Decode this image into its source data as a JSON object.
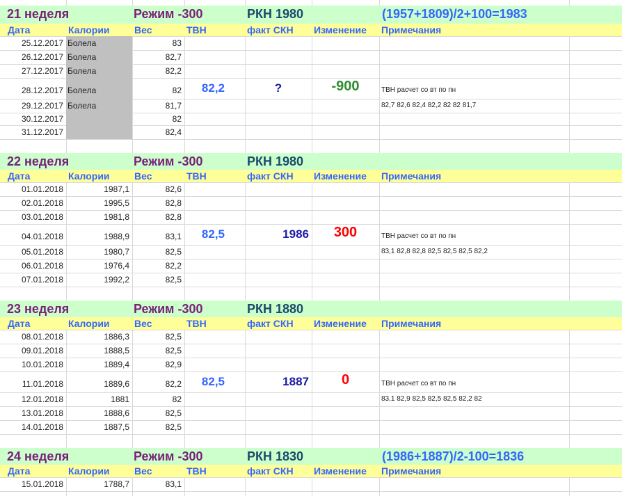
{
  "header_labels": [
    "Дата",
    "Калории",
    "Вес",
    "ТВН",
    "факт СКН",
    "Изменение",
    "Примечания"
  ],
  "weeks": [
    {
      "title": {
        "week": "21  неделя",
        "mode": "Режим -300",
        "rkn": "РКН  1980",
        "formula": "(1957+1809)/2+100=1983"
      },
      "rows": [
        {
          "date": "25.12.2017",
          "cal": "Болела",
          "weight": "83"
        },
        {
          "date": "26.12.2017",
          "cal": "Болела",
          "weight": "82,7"
        },
        {
          "date": "27.12.2017",
          "cal": "Болела",
          "weight": "82,2"
        },
        {
          "date": "28.12.2017",
          "cal": "Болела",
          "weight": "82",
          "tvn": "82,2",
          "fact": "?",
          "change": "-900",
          "note": "ТВН расчет со вт по пн"
        },
        {
          "date": "29.12.2017",
          "cal": "Болела",
          "weight": "81,7",
          "note": "82,7  82,6  82,4  82,2  82  82  81,7"
        },
        {
          "date": "30.12.2017",
          "cal": "",
          "weight": "82"
        },
        {
          "date": "31.12.2017",
          "cal": "",
          "weight": "82,4"
        }
      ]
    },
    {
      "title": {
        "week": "22  неделя",
        "mode": "Режим -300",
        "rkn": "РКН  1980",
        "formula": ""
      },
      "rows": [
        {
          "date": "01.01.2018",
          "cal": "1987,1",
          "weight": "82,6"
        },
        {
          "date": "02.01.2018",
          "cal": "1995,5",
          "weight": "82,8"
        },
        {
          "date": "03.01.2018",
          "cal": "1981,8",
          "weight": "82,8"
        },
        {
          "date": "04.01.2018",
          "cal": "1988,9",
          "weight": "83,1",
          "tvn": "82,5",
          "fact": "1986",
          "change": "300",
          "note": "ТВН расчет со вт по пн"
        },
        {
          "date": "05.01.2018",
          "cal": "1980,7",
          "weight": "82,5",
          "note": "83,1  82,8  82,8  82,5  82,5  82,5  82,2"
        },
        {
          "date": "06.01.2018",
          "cal": "1976,4",
          "weight": "82,2"
        },
        {
          "date": "07.01.2018",
          "cal": "1992,2",
          "weight": "82,5"
        }
      ]
    },
    {
      "title": {
        "week": "23  неделя",
        "mode": "Режим -300",
        "rkn": "РКН 1880",
        "formula": ""
      },
      "rows": [
        {
          "date": "08.01.2018",
          "cal": "1886,3",
          "weight": "82,5"
        },
        {
          "date": "09.01.2018",
          "cal": "1888,5",
          "weight": "82,5"
        },
        {
          "date": "10.01.2018",
          "cal": "1889,4",
          "weight": "82,9"
        },
        {
          "date": "11.01.2018",
          "cal": "1889,6",
          "weight": "82,2",
          "tvn": "82,5",
          "fact": "1887",
          "change": "0",
          "note": "ТВН расчет со вт по пн"
        },
        {
          "date": "12.01.2018",
          "cal": "1881",
          "weight": "82",
          "note": "83,1  82,9  82,5  82,5  82,5  82,2  82"
        },
        {
          "date": "13.01.2018",
          "cal": "1888,6",
          "weight": "82,5"
        },
        {
          "date": "14.01.2018",
          "cal": "1887,5",
          "weight": "82,5"
        }
      ]
    },
    {
      "title": {
        "week": "24  неделя",
        "mode": "Режим -300",
        "rkn": "РКН 1830",
        "formula": "(1986+1887)/2-100=1836"
      },
      "rows": [
        {
          "date": "15.01.2018",
          "cal": "1788,7",
          "weight": "83,1"
        }
      ]
    }
  ],
  "colors": {
    "title_bg": "#ccffcc",
    "header_bg": "#ffff99",
    "header_text": "#3366ff",
    "week_text": "#7a1f7a",
    "rkn_text": "#1a4a6b",
    "sick_cell_bg": "#c0c0c0",
    "change_negative": "#2e8b2e",
    "change_positive": "#ff0000"
  }
}
